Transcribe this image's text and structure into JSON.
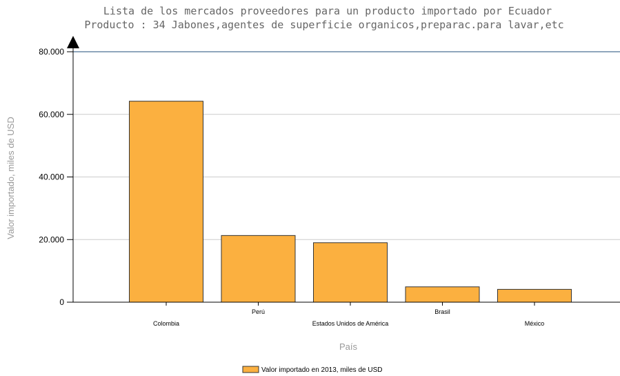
{
  "chart_data": {
    "type": "bar",
    "title": "Lista de los mercados proveedores para un producto importado por Ecuador",
    "subtitle": "Producto : 34 Jabones,agentes de superficie organicos,preparac.para lavar,etc",
    "xlabel": "País",
    "ylabel": "Valor importado, miles de USD",
    "categories": [
      "Colombia",
      "Perú",
      "Estados Unidos de América",
      "Brasil",
      "México"
    ],
    "series": [
      {
        "name": "Valor importado en 2013, miles de USD",
        "values": [
          64200,
          21300,
          19000,
          4900,
          4100
        ]
      }
    ],
    "ylim": [
      0,
      80000
    ],
    "yticks": [
      0,
      20000,
      40000,
      60000,
      80000
    ],
    "ytick_labels": [
      "0",
      "20.000",
      "40.000",
      "60.000",
      "80.000"
    ],
    "grid": true,
    "legend": "bottom-center",
    "colors": {
      "bar": "#FBB040",
      "bar_stroke": "#333333",
      "grid": "#cccccc",
      "top_line": "#1f4e79",
      "axis": "#000000"
    }
  }
}
